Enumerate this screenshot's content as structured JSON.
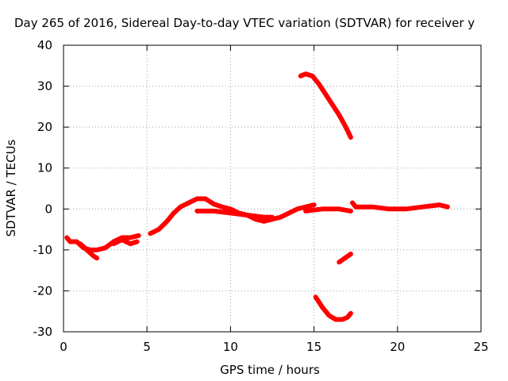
{
  "chart_data": {
    "type": "line",
    "title": "Day 265 of 2016, Sidereal Day-to-day VTEC variation (SDTVAR) for receiver y",
    "xlabel": "GPS time / hours",
    "ylabel": "SDTVAR / TECUs",
    "xlim": [
      0,
      25
    ],
    "ylim": [
      -30,
      40
    ],
    "xticks": [
      0,
      5,
      10,
      15,
      20,
      25
    ],
    "yticks": [
      -30,
      -20,
      -10,
      0,
      10,
      20,
      30,
      40
    ],
    "grid": true,
    "series_color": "#ff0000",
    "series": [
      {
        "name": "trace-main",
        "points": [
          [
            0.2,
            -7
          ],
          [
            0.4,
            -8
          ],
          [
            0.8,
            -8
          ],
          [
            1.2,
            -9.5
          ],
          [
            1.6,
            -10
          ],
          [
            2.0,
            -10
          ],
          [
            2.5,
            -9.5
          ],
          [
            3.0,
            -8
          ],
          [
            3.5,
            -7
          ],
          [
            4.0,
            -7
          ],
          [
            4.5,
            -6.5
          ]
        ]
      },
      {
        "name": "trace-early-dip",
        "points": [
          [
            1.0,
            -8.5
          ],
          [
            1.4,
            -10
          ],
          [
            1.8,
            -11.5
          ],
          [
            2.0,
            -12
          ]
        ]
      },
      {
        "name": "trace-early-bump",
        "points": [
          [
            3.0,
            -8.5
          ],
          [
            3.5,
            -7.5
          ],
          [
            4.0,
            -8.5
          ],
          [
            4.4,
            -8
          ]
        ]
      },
      {
        "name": "trace-rise",
        "points": [
          [
            5.2,
            -6
          ],
          [
            5.7,
            -5
          ],
          [
            6.2,
            -3
          ],
          [
            6.6,
            -1
          ],
          [
            7.0,
            0.5
          ],
          [
            7.5,
            1.5
          ],
          [
            8.0,
            2.5
          ],
          [
            8.5,
            2.5
          ],
          [
            9.0,
            1.2
          ],
          [
            9.5,
            0.5
          ],
          [
            10.0,
            0
          ],
          [
            10.5,
            -1
          ],
          [
            11.0,
            -1.5
          ],
          [
            11.5,
            -2.5
          ],
          [
            12.0,
            -3
          ],
          [
            12.5,
            -2.5
          ],
          [
            13.0,
            -2
          ],
          [
            13.5,
            -1
          ],
          [
            14.0,
            0
          ],
          [
            14.5,
            0.5
          ],
          [
            15.0,
            1
          ]
        ]
      },
      {
        "name": "trace-lower-band",
        "points": [
          [
            8.0,
            -0.5
          ],
          [
            9.0,
            -0.5
          ],
          [
            10.0,
            -1
          ],
          [
            11.0,
            -1.5
          ],
          [
            12.0,
            -2
          ],
          [
            12.5,
            -2
          ]
        ]
      },
      {
        "name": "trace-flat",
        "points": [
          [
            14.5,
            -0.5
          ],
          [
            15.5,
            0
          ],
          [
            16.5,
            0
          ],
          [
            17.2,
            -0.5
          ]
        ]
      },
      {
        "name": "trace-late",
        "points": [
          [
            17.3,
            1.5
          ],
          [
            17.5,
            0.5
          ],
          [
            18.5,
            0.5
          ],
          [
            19.5,
            0
          ],
          [
            20.5,
            0
          ],
          [
            21.5,
            0.5
          ],
          [
            22.5,
            1
          ],
          [
            23.0,
            0.5
          ]
        ]
      },
      {
        "name": "trace-high-arc",
        "points": [
          [
            14.2,
            32.5
          ],
          [
            14.5,
            33
          ],
          [
            14.9,
            32.5
          ],
          [
            15.3,
            30.5
          ],
          [
            15.7,
            28
          ],
          [
            16.1,
            25.5
          ],
          [
            16.5,
            23
          ],
          [
            16.9,
            20
          ],
          [
            17.2,
            17.5
          ]
        ]
      },
      {
        "name": "trace-mid-short",
        "points": [
          [
            16.5,
            -13
          ],
          [
            17.2,
            -11
          ]
        ]
      },
      {
        "name": "trace-low-arc",
        "points": [
          [
            15.1,
            -21.5
          ],
          [
            15.5,
            -24
          ],
          [
            15.9,
            -26
          ],
          [
            16.3,
            -27
          ],
          [
            16.7,
            -27
          ],
          [
            17.0,
            -26.5
          ],
          [
            17.2,
            -25.5
          ]
        ]
      }
    ]
  }
}
